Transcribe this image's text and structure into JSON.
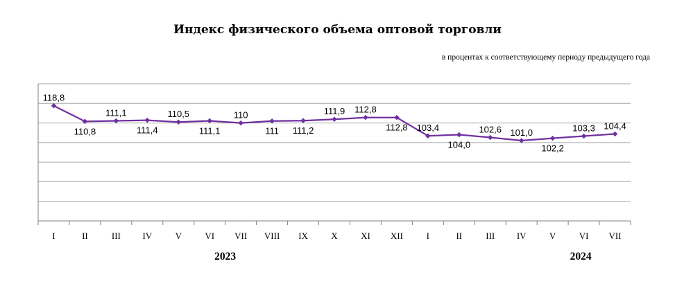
{
  "title": "Индекс физического объема оптовой торговли",
  "subtitle": "в процентах к соответствующему периоду предыдущего года",
  "colors": {
    "line": "#7030a0",
    "grid": "#a6a6a6",
    "axis": "#808080"
  },
  "chart_data": {
    "type": "line",
    "title": "Индекс физического объема оптовой торговли",
    "subtitle": "в процентах к соответствующему периоду предыдущего года",
    "categories": [
      "I",
      "II",
      "III",
      "IV",
      "V",
      "VI",
      "VII",
      "VIII",
      "IX",
      "X",
      "XI",
      "XII",
      "I",
      "II",
      "III",
      "IV",
      "V",
      "VI",
      "VII"
    ],
    "years": [
      {
        "label": "2023",
        "from": 0,
        "to": 11
      },
      {
        "label": "2024",
        "from": 12,
        "to": 18
      }
    ],
    "series": [
      {
        "values": [
          118.8,
          110.8,
          111.1,
          111.4,
          110.5,
          111.1,
          110,
          111,
          111.2,
          111.9,
          112.8,
          112.8,
          103.4,
          104.0,
          102.6,
          101.0,
          102.2,
          103.3,
          104.4
        ],
        "labels": [
          "118,8",
          "110,8",
          "111,1",
          "111,4",
          "110,5",
          "111,1",
          "110",
          "111",
          "111,2",
          "111,9",
          "112,8",
          "112,8",
          "103,4",
          "104,0",
          "102,6",
          "101,0",
          "102,2",
          "103,3",
          "104,4"
        ]
      }
    ],
    "ylim": [
      60,
      130
    ],
    "grid": true,
    "legend": "none",
    "ylabel": "",
    "xlabel": ""
  }
}
